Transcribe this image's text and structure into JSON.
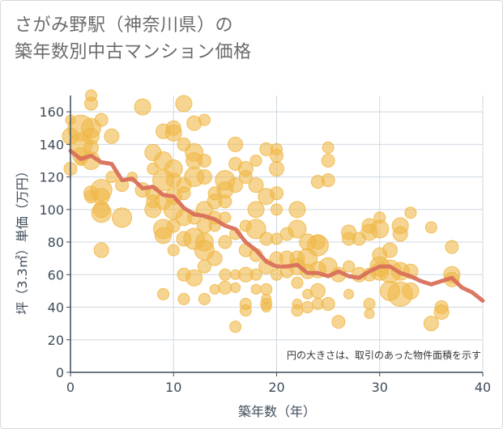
{
  "title_line1": "さがみ野駅（神奈川県）の",
  "title_line2": "築年数別中古マンション価格",
  "colors": {
    "bubble": "#f0b94a",
    "line": "#d9705a",
    "grid": "#cfd8e0",
    "axis": "#3f4c5a"
  },
  "chart_data": {
    "type": "scatter",
    "xlabel": "築年数（年）",
    "ylabel": "坪（3.3㎡）単価（万円）",
    "xlim": [
      0,
      40
    ],
    "ylim": [
      0,
      170
    ],
    "xticks": [
      0,
      10,
      20,
      30,
      40
    ],
    "yticks": [
      0,
      20,
      40,
      60,
      80,
      100,
      120,
      140,
      160
    ],
    "grid": true,
    "note": "円の大きさは、取引のあった物件面積を示す",
    "trend": {
      "x": [
        0,
        1,
        2,
        3,
        4,
        5,
        6,
        7,
        8,
        9,
        10,
        11,
        12,
        13,
        14,
        15,
        16,
        17,
        18,
        19,
        20,
        21,
        22,
        23,
        24,
        25,
        26,
        27,
        28,
        29,
        30,
        31,
        32,
        33,
        34,
        35,
        36,
        37,
        38,
        39,
        40
      ],
      "y": [
        136,
        131,
        133,
        129,
        128,
        118,
        119,
        113,
        114,
        109,
        108,
        101,
        97,
        96,
        94,
        90,
        88,
        80,
        75,
        68,
        65,
        65,
        66,
        61,
        61,
        59,
        62,
        59,
        58,
        62,
        65,
        65,
        61,
        59,
        56,
        54,
        56,
        58,
        52,
        49,
        44
      ]
    },
    "points": [
      [
        0,
        145,
        10
      ],
      [
        0,
        125,
        8
      ],
      [
        0,
        155,
        6
      ],
      [
        1,
        140,
        14
      ],
      [
        1,
        150,
        16
      ],
      [
        1,
        133,
        10
      ],
      [
        1,
        130,
        6
      ],
      [
        2,
        165,
        8
      ],
      [
        2,
        150,
        12
      ],
      [
        2,
        145,
        10
      ],
      [
        2,
        138,
        9
      ],
      [
        2,
        130,
        11
      ],
      [
        2,
        110,
        9
      ],
      [
        2,
        108,
        8
      ],
      [
        2,
        170,
        7
      ],
      [
        3,
        155,
        8
      ],
      [
        3,
        112,
        13
      ],
      [
        3,
        100,
        10
      ],
      [
        3,
        98,
        12
      ],
      [
        3,
        108,
        10
      ],
      [
        3,
        75,
        9
      ],
      [
        4,
        145,
        9
      ],
      [
        4,
        120,
        7
      ],
      [
        5,
        95,
        12
      ],
      [
        5,
        115,
        8
      ],
      [
        6,
        120,
        6
      ],
      [
        7,
        163,
        10
      ],
      [
        7,
        112,
        9
      ],
      [
        8,
        135,
        10
      ],
      [
        8,
        125,
        7
      ],
      [
        8,
        100,
        10
      ],
      [
        8,
        105,
        8
      ],
      [
        8,
        110,
        9
      ],
      [
        9,
        148,
        9
      ],
      [
        9,
        130,
        11
      ],
      [
        9,
        118,
        13
      ],
      [
        9,
        105,
        10
      ],
      [
        9,
        88,
        12
      ],
      [
        9,
        84,
        10
      ],
      [
        9,
        48,
        7
      ],
      [
        10,
        150,
        9
      ],
      [
        10,
        147,
        10
      ],
      [
        10,
        125,
        11
      ],
      [
        10,
        118,
        9
      ],
      [
        10,
        108,
        10
      ],
      [
        10,
        100,
        12
      ],
      [
        10,
        90,
        8
      ],
      [
        10,
        75,
        7
      ],
      [
        11,
        165,
        10
      ],
      [
        11,
        140,
        8
      ],
      [
        11,
        115,
        9
      ],
      [
        11,
        110,
        8
      ],
      [
        11,
        95,
        10
      ],
      [
        11,
        82,
        9
      ],
      [
        11,
        60,
        8
      ],
      [
        11,
        45,
        7
      ],
      [
        12,
        153,
        9
      ],
      [
        12,
        135,
        11
      ],
      [
        12,
        130,
        10
      ],
      [
        12,
        120,
        12
      ],
      [
        12,
        95,
        8
      ],
      [
        12,
        82,
        13
      ],
      [
        12,
        58,
        10
      ],
      [
        13,
        155,
        7
      ],
      [
        13,
        130,
        8
      ],
      [
        13,
        120,
        9
      ],
      [
        13,
        100,
        10
      ],
      [
        13,
        90,
        9
      ],
      [
        13,
        80,
        11
      ],
      [
        13,
        75,
        12
      ],
      [
        13,
        65,
        8
      ],
      [
        13,
        45,
        7
      ],
      [
        14,
        110,
        8
      ],
      [
        14,
        105,
        9
      ],
      [
        14,
        95,
        8
      ],
      [
        14,
        90,
        7
      ],
      [
        14,
        70,
        9
      ],
      [
        14,
        51,
        6
      ],
      [
        15,
        118,
        12
      ],
      [
        15,
        112,
        10
      ],
      [
        15,
        105,
        8
      ],
      [
        15,
        95,
        7
      ],
      [
        15,
        80,
        8
      ],
      [
        15,
        60,
        7
      ],
      [
        15,
        52,
        8
      ],
      [
        16,
        140,
        9
      ],
      [
        16,
        128,
        8
      ],
      [
        16,
        115,
        9
      ],
      [
        16,
        85,
        7
      ],
      [
        16,
        60,
        6
      ],
      [
        16,
        52,
        6
      ],
      [
        16,
        28,
        7
      ],
      [
        17,
        125,
        9
      ],
      [
        17,
        120,
        8
      ],
      [
        17,
        90,
        7
      ],
      [
        17,
        75,
        8
      ],
      [
        17,
        60,
        9
      ],
      [
        17,
        38,
        7
      ],
      [
        17,
        42,
        7
      ],
      [
        18,
        130,
        7
      ],
      [
        18,
        115,
        9
      ],
      [
        18,
        100,
        10
      ],
      [
        18,
        88,
        12
      ],
      [
        18,
        72,
        8
      ],
      [
        18,
        60,
        7
      ],
      [
        18,
        51,
        6
      ],
      [
        19,
        137,
        8
      ],
      [
        19,
        108,
        10
      ],
      [
        19,
        82,
        8
      ],
      [
        19,
        65,
        9
      ],
      [
        19,
        51,
        7
      ],
      [
        19,
        45,
        6
      ],
      [
        19,
        40,
        6
      ],
      [
        19,
        42,
        7
      ],
      [
        20,
        137,
        7
      ],
      [
        20,
        133,
        8
      ],
      [
        20,
        125,
        9
      ],
      [
        20,
        110,
        8
      ],
      [
        20,
        100,
        7
      ],
      [
        20,
        82,
        7
      ],
      [
        20,
        70,
        8
      ],
      [
        20,
        60,
        7
      ],
      [
        21,
        85,
        8
      ],
      [
        21,
        70,
        9
      ],
      [
        21,
        62,
        8
      ],
      [
        22,
        100,
        10
      ],
      [
        22,
        88,
        11
      ],
      [
        22,
        70,
        9
      ],
      [
        22,
        65,
        10
      ],
      [
        22,
        55,
        7
      ],
      [
        22,
        42,
        6
      ],
      [
        22,
        38,
        7
      ],
      [
        23,
        80,
        10
      ],
      [
        23,
        70,
        12
      ],
      [
        23,
        62,
        9
      ],
      [
        23,
        48,
        6
      ],
      [
        23,
        40,
        7
      ],
      [
        24,
        117,
        8
      ],
      [
        24,
        80,
        9
      ],
      [
        24,
        78,
        13
      ],
      [
        24,
        63,
        10
      ],
      [
        24,
        50,
        9
      ],
      [
        24,
        42,
        7
      ],
      [
        25,
        138,
        7
      ],
      [
        25,
        130,
        8
      ],
      [
        25,
        118,
        8
      ],
      [
        25,
        65,
        11
      ],
      [
        25,
        42,
        8
      ],
      [
        26,
        60,
        9
      ],
      [
        26,
        31,
        8
      ],
      [
        27,
        86,
        9
      ],
      [
        27,
        82,
        8
      ],
      [
        27,
        65,
        7
      ],
      [
        27,
        48,
        6
      ],
      [
        28,
        60,
        9
      ],
      [
        28,
        82,
        8
      ],
      [
        29,
        90,
        9
      ],
      [
        29,
        86,
        10
      ],
      [
        29,
        60,
        8
      ],
      [
        29,
        42,
        7
      ],
      [
        29,
        36,
        6
      ],
      [
        30,
        95,
        7
      ],
      [
        30,
        88,
        11
      ],
      [
        30,
        72,
        9
      ],
      [
        30,
        65,
        12
      ],
      [
        30,
        62,
        11
      ],
      [
        31,
        75,
        9
      ],
      [
        31,
        62,
        14
      ],
      [
        31,
        50,
        12
      ],
      [
        32,
        90,
        10
      ],
      [
        32,
        85,
        9
      ],
      [
        32,
        62,
        11
      ],
      [
        32,
        48,
        15
      ],
      [
        33,
        98,
        7
      ],
      [
        33,
        62,
        9
      ],
      [
        33,
        50,
        10
      ],
      [
        35,
        89,
        7
      ],
      [
        35,
        30,
        9
      ],
      [
        36,
        40,
        8
      ],
      [
        36,
        37,
        9
      ],
      [
        37,
        77,
        8
      ],
      [
        37,
        60,
        10
      ],
      [
        37,
        57,
        9
      ]
    ]
  }
}
